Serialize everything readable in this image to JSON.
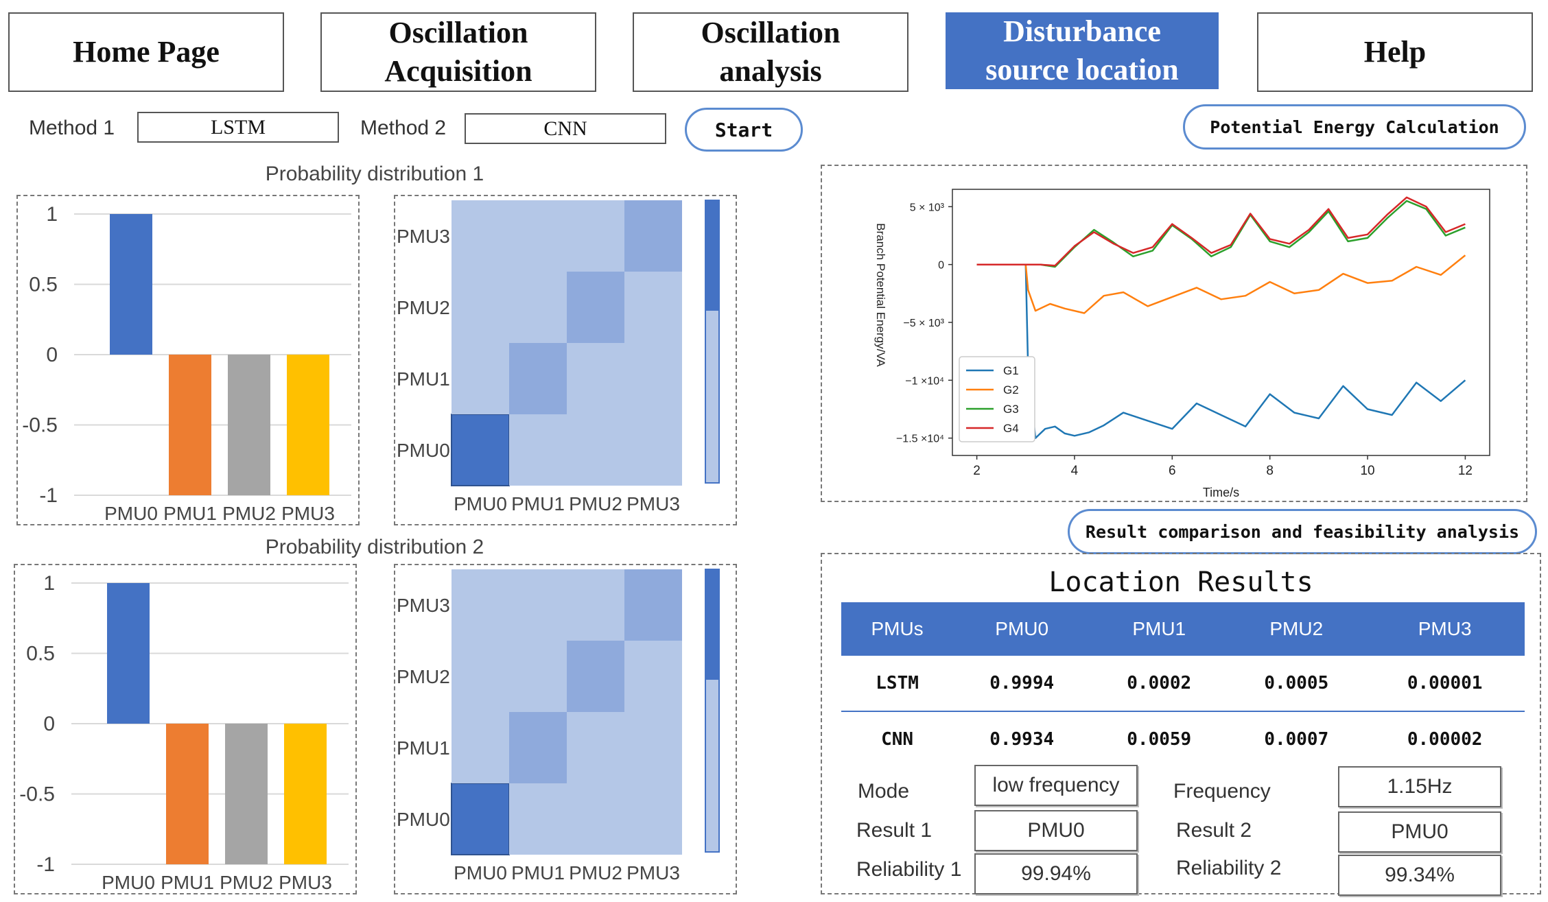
{
  "nav": {
    "home": "Home Page",
    "acq_1": "Oscillation",
    "acq_2": "Acquisition",
    "ana_1": "Oscillation",
    "ana_2": "analysis",
    "loc_1": "Disturbance",
    "loc_2": "source location",
    "help": "Help"
  },
  "controls": {
    "method1_label": "Method 1",
    "method1_value": "LSTM",
    "method2_label": "Method 2",
    "method2_value": "CNN",
    "start": "Start",
    "potential": "Potential Energy Calculation",
    "compare": "Result comparison and feasibility analysis"
  },
  "dist1": {
    "title": "Probability distribution 1"
  },
  "dist2": {
    "title": "Probability distribution 2"
  },
  "colors": {
    "accent": "#4472c4",
    "orange": "#ed7d31",
    "gray": "#a5a5a5",
    "gold": "#ffc000"
  },
  "chart_data": [
    {
      "type": "bar",
      "categories": [
        "PMU0",
        "PMU1",
        "PMU2",
        "PMU3"
      ],
      "values": [
        1,
        -1,
        -1,
        -1
      ],
      "ylim": [
        -1,
        1
      ],
      "yticks": [
        "1",
        "0.5",
        "0",
        "-0.5",
        "-1"
      ]
    },
    {
      "type": "heatmap",
      "xcats": [
        "PMU0",
        "PMU1",
        "PMU2",
        "PMU3"
      ],
      "ycats": [
        "PMU0",
        "PMU1",
        "PMU2",
        "PMU3"
      ],
      "cells": [
        [
          1,
          0,
          0,
          0
        ],
        [
          0,
          0.4,
          0,
          0
        ],
        [
          0,
          0,
          0.4,
          0
        ],
        [
          0,
          0,
          0,
          0.4
        ]
      ]
    },
    {
      "type": "bar",
      "categories": [
        "PMU0",
        "PMU1",
        "PMU2",
        "PMU3"
      ],
      "values": [
        1,
        -1,
        -1,
        -1
      ],
      "ylim": [
        -1,
        1
      ],
      "yticks": [
        "1",
        "0.5",
        "0",
        "-0.5",
        "-1"
      ]
    },
    {
      "type": "heatmap",
      "xcats": [
        "PMU0",
        "PMU1",
        "PMU2",
        "PMU3"
      ],
      "ycats": [
        "PMU0",
        "PMU1",
        "PMU2",
        "PMU3"
      ],
      "cells": [
        [
          1,
          0,
          0,
          0
        ],
        [
          0,
          0.4,
          0,
          0
        ],
        [
          0,
          0,
          0.4,
          0
        ],
        [
          0,
          0,
          0,
          0.4
        ]
      ]
    },
    {
      "type": "line",
      "xlabel": "Time/s",
      "ylabel": "Branch Potential Energy/VA",
      "xlim": [
        1.5,
        12.5
      ],
      "ylim": [
        -16500,
        6500
      ],
      "xticks": [
        "2",
        "4",
        "6",
        "8",
        "10",
        "12"
      ],
      "yticks": [
        "5 × 10³",
        "0",
        "−5 × 10³",
        "−1 ×10⁴",
        "−1.5 ×10⁴"
      ],
      "series": [
        {
          "name": "G1",
          "color": "#1f77b4",
          "x": [
            2,
            3,
            3.05,
            3.2,
            3.4,
            3.6,
            3.8,
            4,
            4.3,
            4.6,
            5,
            5.5,
            6,
            6.5,
            7,
            7.5,
            8,
            8.5,
            9,
            9.5,
            10,
            10.5,
            11,
            11.5,
            12
          ],
          "y": [
            0,
            0,
            -9000,
            -15000,
            -14200,
            -14000,
            -14600,
            -14800,
            -14500,
            -13900,
            -12800,
            -13500,
            -14200,
            -12000,
            -13000,
            -14000,
            -11200,
            -12800,
            -13300,
            -10500,
            -12500,
            -13000,
            -10200,
            -11800,
            -10000
          ]
        },
        {
          "name": "G2",
          "color": "#ff7f0e",
          "x": [
            2,
            3,
            3.05,
            3.2,
            3.5,
            3.8,
            4.2,
            4.6,
            5,
            5.5,
            6,
            6.5,
            7,
            7.5,
            8,
            8.5,
            9,
            9.5,
            10,
            10.5,
            11,
            11.5,
            12
          ],
          "y": [
            0,
            0,
            -2200,
            -4000,
            -3400,
            -3800,
            -4200,
            -2700,
            -2400,
            -3600,
            -2800,
            -2000,
            -3000,
            -2700,
            -1500,
            -2500,
            -2200,
            -800,
            -1600,
            -1400,
            -200,
            -900,
            800
          ]
        },
        {
          "name": "G3",
          "color": "#2ca02c",
          "x": [
            2,
            3,
            3.3,
            3.6,
            4,
            4.4,
            4.8,
            5.2,
            5.6,
            6,
            6.4,
            6.8,
            7.2,
            7.6,
            8,
            8.4,
            8.8,
            9.2,
            9.6,
            10,
            10.4,
            10.8,
            11.2,
            11.6,
            12
          ],
          "y": [
            0,
            0,
            0,
            -200,
            1500,
            3000,
            1900,
            700,
            1200,
            3400,
            2200,
            700,
            1500,
            4300,
            2000,
            1500,
            2800,
            4600,
            2000,
            2300,
            4000,
            5500,
            4800,
            2500,
            3200
          ]
        },
        {
          "name": "G4",
          "color": "#d62728",
          "x": [
            2,
            3,
            3.3,
            3.6,
            4,
            4.4,
            4.8,
            5.2,
            5.6,
            6,
            6.4,
            6.8,
            7.2,
            7.6,
            8,
            8.4,
            8.8,
            9.2,
            9.6,
            10,
            10.4,
            10.8,
            11.2,
            11.6,
            12
          ],
          "y": [
            0,
            0,
            0,
            -100,
            1600,
            2800,
            1800,
            1000,
            1500,
            3500,
            2300,
            1000,
            1700,
            4400,
            2200,
            1800,
            3000,
            4800,
            2300,
            2600,
            4300,
            5800,
            5000,
            2800,
            3500
          ]
        }
      ]
    }
  ],
  "results": {
    "title": "Location Results",
    "headers": [
      "PMUs",
      "PMU0",
      "PMU1",
      "PMU2",
      "PMU3"
    ],
    "rows": [
      [
        "LSTM",
        "0.9994",
        "0.0002",
        "0.0005",
        "0.00001"
      ],
      [
        "CNN",
        "0.9934",
        "0.0059",
        "0.0007",
        "0.00002"
      ]
    ],
    "mode_label": "Mode",
    "mode_value": "low frequency",
    "freq_label": "Frequency",
    "freq_value": "1.15Hz",
    "result1_label": "Result 1",
    "result1_value": "PMU0",
    "result2_label": "Result 2",
    "result2_value": "PMU0",
    "rel1_label": "Reliability 1",
    "rel1_value": "99.94%",
    "rel2_label": "Reliability 2",
    "rel2_value": "99.34%"
  }
}
